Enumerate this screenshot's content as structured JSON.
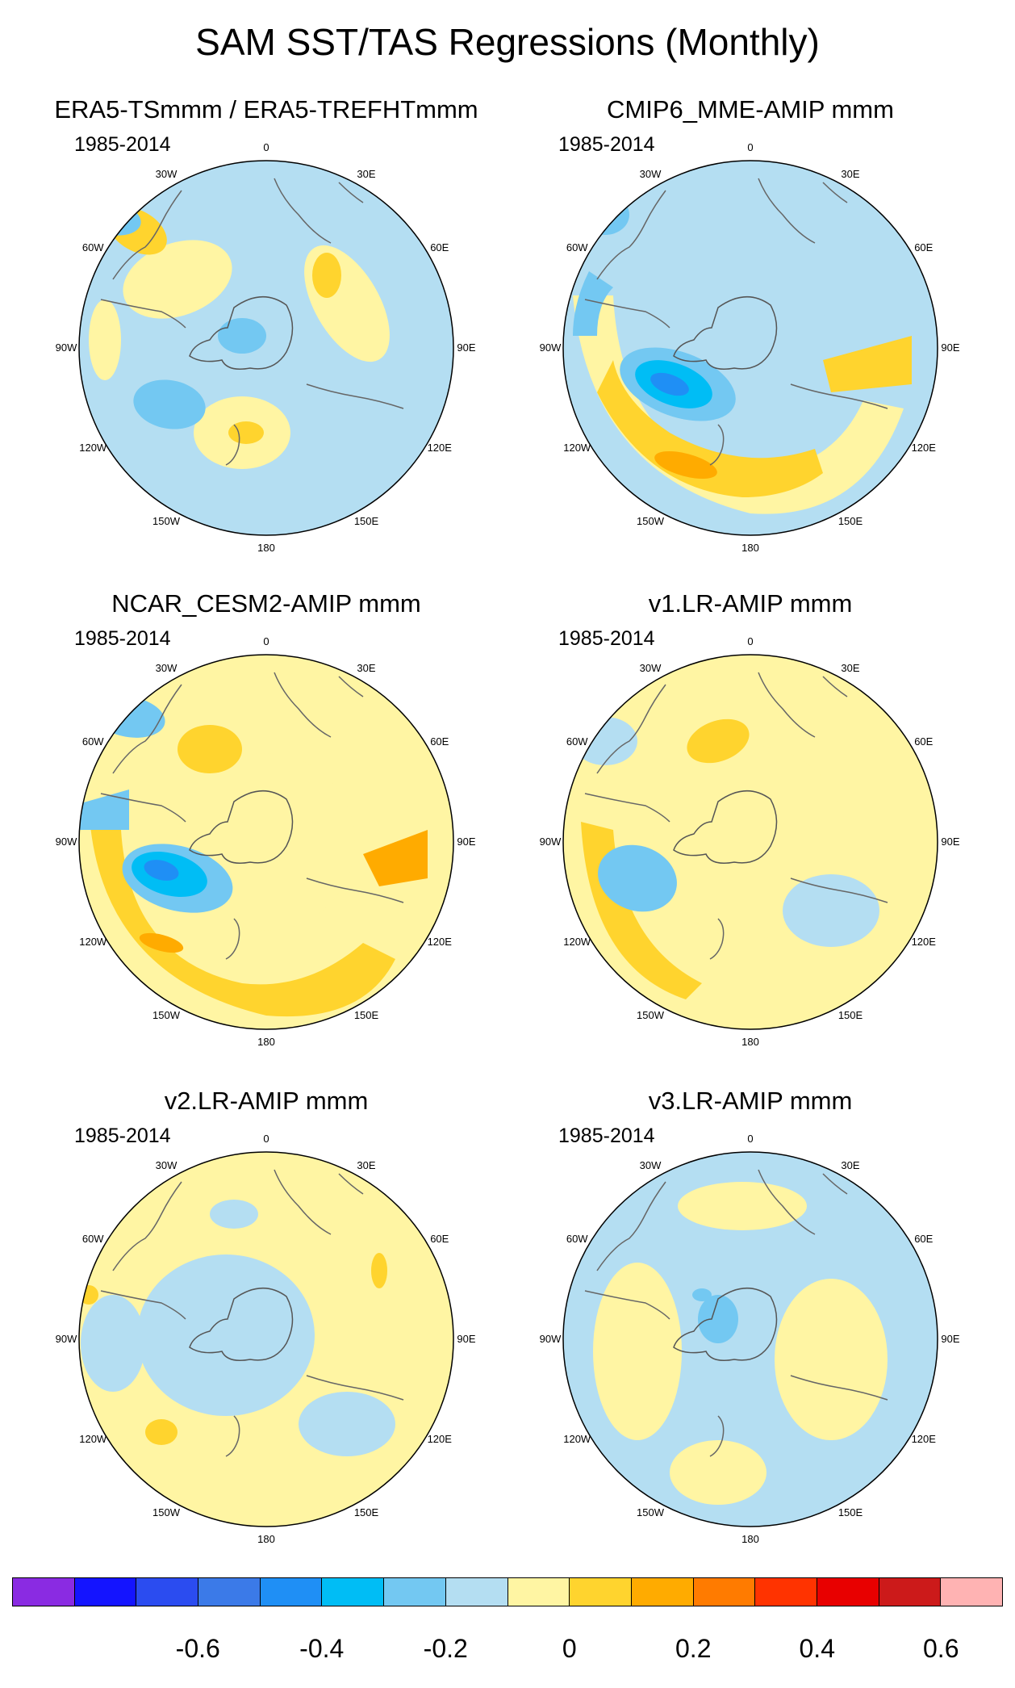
{
  "title": "SAM SST/TAS Regressions (Monthly)",
  "period": "1985-2014",
  "lon_labels": [
    "0",
    "30E",
    "60E",
    "90E",
    "120E",
    "150E",
    "180",
    "150W",
    "120W",
    "90W",
    "60W",
    "30W"
  ],
  "panels": [
    {
      "title": "ERA5-TSmmm / ERA5-TREFHTmmm",
      "pattern": "era5"
    },
    {
      "title": "CMIP6_MME-AMIP  mmm",
      "pattern": "cmip6"
    },
    {
      "title": "NCAR_CESM2-AMIP  mmm",
      "pattern": "cesm2"
    },
    {
      "title": "v1.LR-AMIP  mmm",
      "pattern": "v1"
    },
    {
      "title": "v2.LR-AMIP  mmm",
      "pattern": "v2"
    },
    {
      "title": "v3.LR-AMIP  mmm",
      "pattern": "v3"
    }
  ],
  "colorbar": {
    "colors": [
      "#8a2be2",
      "#1414ff",
      "#2b4cf0",
      "#3b7ae8",
      "#1f8ff5",
      "#00bdf5",
      "#73c8f2",
      "#b4def2",
      "#fff5a3",
      "#ffd42e",
      "#ffab00",
      "#ff7b00",
      "#ff3300",
      "#e80000",
      "#cc1a1a",
      "#ffb3b3"
    ],
    "tick_labels": [
      "-0.6",
      "-0.4",
      "-0.2",
      "0",
      "0.2",
      "0.4",
      "0.6"
    ]
  }
}
